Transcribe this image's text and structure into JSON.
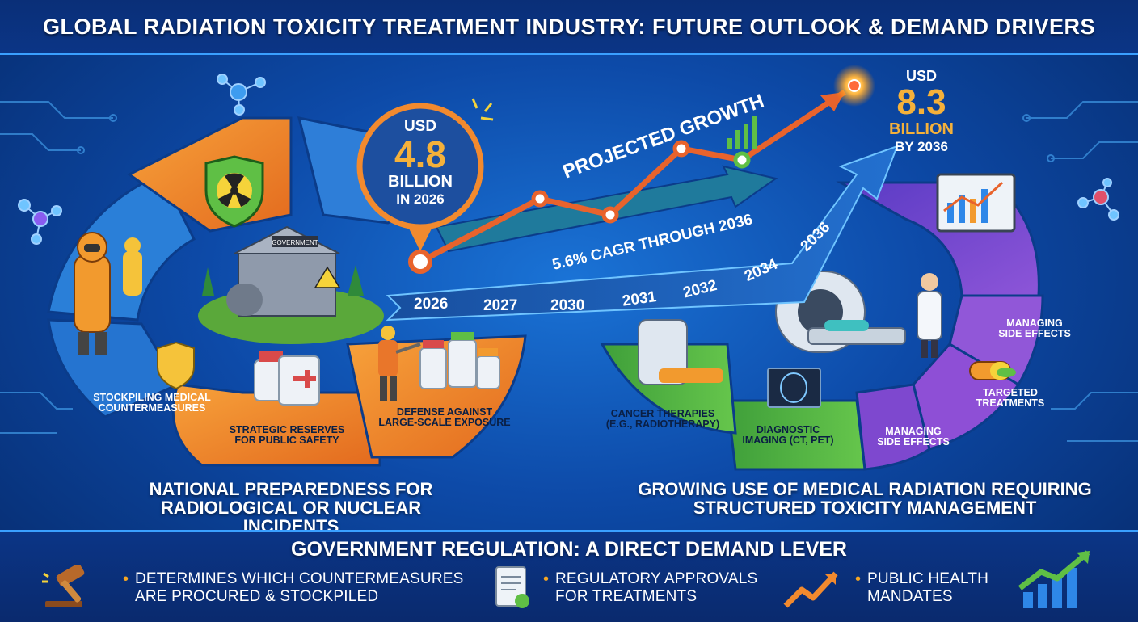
{
  "title": "GLOBAL RADIATION TOXICITY TREATMENT INDUSTRY: FUTURE OUTLOOK & DEMAND DRIVERS",
  "market_2026": {
    "currency": "USD",
    "value": "4.8",
    "unit": "BILLION",
    "year_label": "IN 2026"
  },
  "market_2036": {
    "currency": "USD",
    "value": "8.3",
    "unit": "BILLION",
    "year_label": "BY 2036"
  },
  "growth_label": "PROJECTED GROWTH",
  "cagr_label": "5.6% CAGR THROUGH 2036",
  "timeline_years": [
    "2026",
    "2027",
    "2030",
    "2031",
    "2032",
    "2034",
    "2036"
  ],
  "left_section": {
    "heading_line1": "NATIONAL PREPAREDNESS FOR",
    "heading_line2": "RADIOLOGICAL OR NUCLEAR INCIDENTS",
    "segments": [
      {
        "line1": "STOCKPILING MEDICAL",
        "line2": "COUNTERMEASURES"
      },
      {
        "line1": "STRATEGIC RESERVES",
        "line2": "FOR PUBLIC SAFETY"
      },
      {
        "line1": "DEFENSE AGAINST",
        "line2": "LARGE-SCALE EXPOSURE"
      }
    ],
    "building_sign": "GOVERNMENT"
  },
  "right_section": {
    "heading_line1": "GROWING USE OF MEDICAL RADIATION REQUIRING",
    "heading_line2": "STRUCTURED TOXICITY MANAGEMENT",
    "segments": [
      {
        "line1": "CANCER THERAPIES",
        "line2": "(E.G., RADIOTHERAPY)"
      },
      {
        "line1": "DIAGNOSTIC",
        "line2": "IMAGING (CT, PET)"
      },
      {
        "line1": "MANAGING",
        "line2": "SIDE EFFECTS"
      },
      {
        "line1": "TARGETED",
        "line2": "TREATMENTS"
      },
      {
        "line1": "MANAGING",
        "line2": "SIDE EFFECTS"
      }
    ]
  },
  "regulation": {
    "title": "GOVERNMENT REGULATION: A DIRECT DEMAND LEVER",
    "items": [
      {
        "line1": "DETERMINES WHICH COUNTERMEASURES",
        "line2": "ARE PROCURED & STOCKPILED",
        "icon": "gavel-icon"
      },
      {
        "line1": "REGULATORY APPROVALS",
        "line2": "FOR TREATMENTS",
        "icon": "document-icon"
      },
      {
        "line1": "PUBLIC HEALTH",
        "line2": "MANDATES",
        "icon": "trend-up-icon"
      }
    ]
  },
  "colors": {
    "accent_orange": "#f28a2e",
    "line_orange": "#e8632c",
    "arrow_blue": "#1e63c4",
    "green": "#5fbf45",
    "purple": "#7a4bd1",
    "background": "#0d4aa8"
  }
}
